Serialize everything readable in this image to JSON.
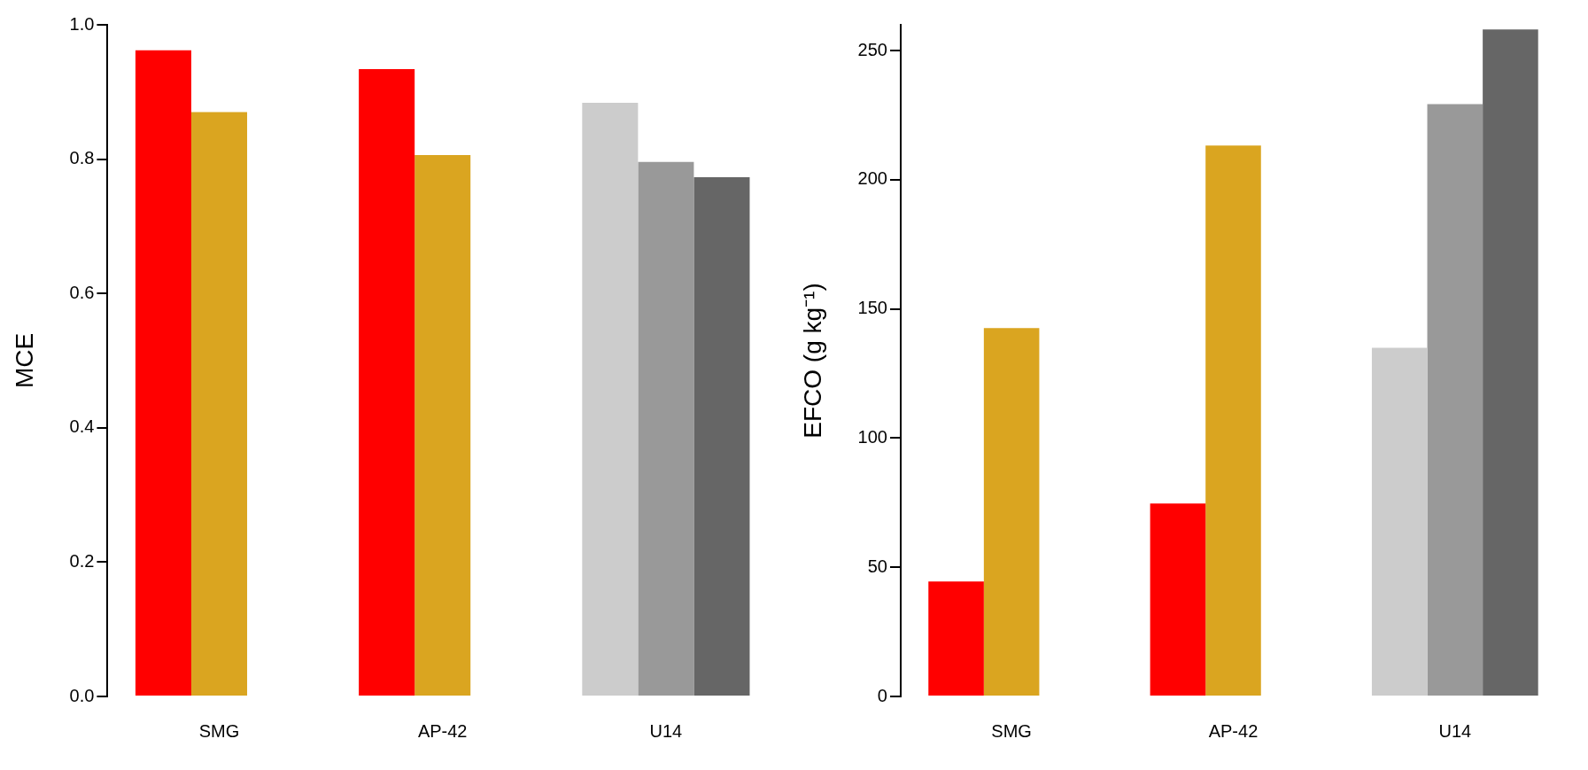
{
  "chart_data": [
    {
      "type": "bar",
      "ylabel": "MCE",
      "categories": [
        "SMG",
        "AP-42",
        "U14"
      ],
      "ylim": [
        0,
        1
      ],
      "yticks": [
        {
          "value": 0,
          "label": "0.0"
        },
        0.2,
        0.4,
        0.6,
        0.8,
        {
          "value": 1,
          "label": "1.0"
        }
      ],
      "series": [
        {
          "colors": [
            "#ff0000",
            "#ff0000",
            "#cccccc"
          ],
          "values": [
            0.962,
            0.934,
            0.884
          ]
        },
        {
          "colors": [
            "#daa520",
            "#daa520",
            "#999999"
          ],
          "values": [
            0.87,
            0.806,
            0.796
          ]
        },
        {
          "colors": [
            null,
            null,
            "#666666"
          ],
          "values": [
            null,
            null,
            0.773
          ]
        }
      ]
    },
    {
      "type": "bar",
      "ylabel": "EFCO (g kg⁻¹)",
      "categories": [
        "SMG",
        "AP-42",
        "U14"
      ],
      "ylim": [
        0,
        260
      ],
      "yticks": [
        0,
        50,
        100,
        150,
        200,
        250
      ],
      "series": [
        {
          "colors": [
            "#ff0000",
            "#ff0000",
            "#cccccc"
          ],
          "values": [
            44.5,
            74.7,
            135.0
          ]
        },
        {
          "colors": [
            "#daa520",
            "#daa520",
            "#999999"
          ],
          "values": [
            142.6,
            213.3,
            229.3
          ]
        },
        {
          "colors": [
            null,
            null,
            "#666666"
          ],
          "values": [
            null,
            null,
            258.2
          ]
        }
      ]
    }
  ]
}
